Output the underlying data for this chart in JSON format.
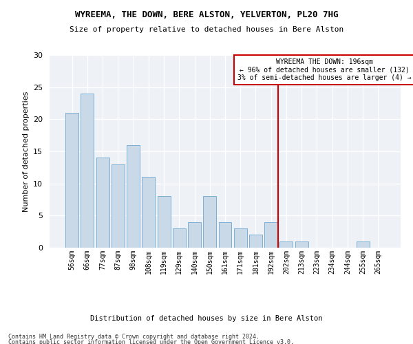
{
  "title": "WYREEMA, THE DOWN, BERE ALSTON, YELVERTON, PL20 7HG",
  "subtitle": "Size of property relative to detached houses in Bere Alston",
  "xlabel": "Distribution of detached houses by size in Bere Alston",
  "ylabel": "Number of detached properties",
  "bar_labels": [
    "56sqm",
    "66sqm",
    "77sqm",
    "87sqm",
    "98sqm",
    "108sqm",
    "119sqm",
    "129sqm",
    "140sqm",
    "150sqm",
    "161sqm",
    "171sqm",
    "181sqm",
    "192sqm",
    "202sqm",
    "213sqm",
    "223sqm",
    "234sqm",
    "244sqm",
    "255sqm",
    "265sqm"
  ],
  "bar_values": [
    21,
    24,
    14,
    13,
    16,
    11,
    8,
    3,
    4,
    8,
    4,
    3,
    2,
    4,
    1,
    1,
    0,
    0,
    0,
    1,
    0
  ],
  "bar_color": "#c9d9e8",
  "bar_edge_color": "#7bafd4",
  "annotation_text": "WYREEMA THE DOWN: 196sqm\n← 96% of detached houses are smaller (132)\n3% of semi-detached houses are larger (4) →",
  "annotation_box_color": "#ffffff",
  "annotation_box_edge_color": "#cc0000",
  "vline_color": "#cc0000",
  "footer_line1": "Contains HM Land Registry data © Crown copyright and database right 2024.",
  "footer_line2": "Contains public sector information licensed under the Open Government Licence v3.0.",
  "background_color": "#eef2f7",
  "ylim": [
    0,
    30
  ],
  "yticks": [
    0,
    5,
    10,
    15,
    20,
    25,
    30
  ]
}
